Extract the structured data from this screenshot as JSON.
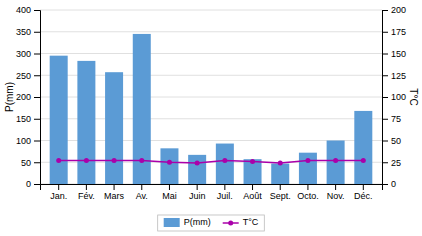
{
  "chart_data": {
    "type": "bar",
    "categories": [
      "Jan.",
      "Fév.",
      "Mars",
      "Av.",
      "Mai",
      "Juin",
      "Juil.",
      "Août",
      "Sept.",
      "Octo.",
      "Nov.",
      "Déc."
    ],
    "series": [
      {
        "name": "P(mm)",
        "type": "bar",
        "color": "#5b9bd5",
        "values": [
          295,
          283,
          257,
          345,
          82,
          67,
          93,
          57,
          47,
          72,
          100,
          168
        ]
      },
      {
        "name": "T°C",
        "type": "line",
        "color": "#aa00aa",
        "marker": "circle",
        "axis": "y2",
        "values": [
          27,
          27,
          27,
          27,
          25,
          24,
          27,
          26,
          24,
          27,
          27,
          27
        ]
      }
    ],
    "ylabel": "P(mm)",
    "y2label": "T°C",
    "ylim": [
      0,
      400
    ],
    "yticks": [
      0,
      50,
      100,
      150,
      200,
      250,
      300,
      350,
      400
    ],
    "y2lim": [
      0,
      200
    ],
    "y2ticks": [
      0,
      25,
      50,
      75,
      100,
      125,
      150,
      175,
      200
    ],
    "grid": true,
    "legend": "bottom"
  }
}
